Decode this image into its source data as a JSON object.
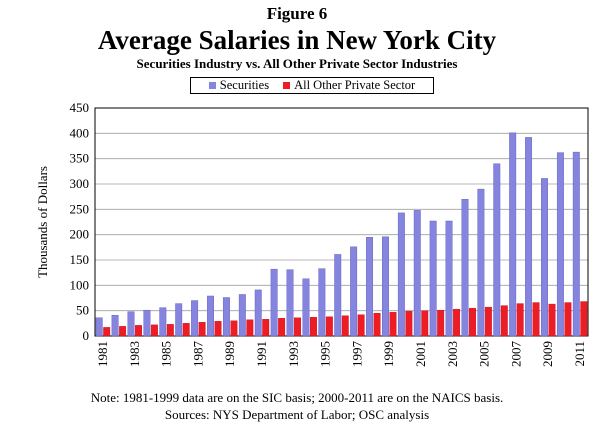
{
  "header": {
    "figure_label": "Figure 6",
    "title": "Average Salaries in New York City",
    "subtitle": "Securities Industry vs. All Other Private Sector Industries"
  },
  "notes": {
    "note": "Note: 1981-1999 data are on the SIC basis; 2000-2011 are on the NAICS basis.",
    "sources": "Sources: NYS Department of Labor; OSC analysis"
  },
  "chart_data": {
    "type": "bar",
    "title": "Average Salaries in New York City",
    "subtitle": "Securities Industry vs. All Other Private Sector Industries",
    "xlabel": "",
    "ylabel": "Thousands of Dollars",
    "ylim": [
      0,
      450
    ],
    "yticks": [
      0,
      50,
      100,
      150,
      200,
      250,
      300,
      350,
      400,
      450
    ],
    "grid": true,
    "legend_position": "top",
    "categories": [
      "1981",
      "1982",
      "1983",
      "1984",
      "1985",
      "1986",
      "1987",
      "1988",
      "1989",
      "1990",
      "1991",
      "1992",
      "1993",
      "1994",
      "1995",
      "1996",
      "1997",
      "1998",
      "1999",
      "2000",
      "2001",
      "2002",
      "2003",
      "2004",
      "2005",
      "2006",
      "2007",
      "2008",
      "2009",
      "2010",
      "2011"
    ],
    "xtick_labels": [
      "1981",
      "1983",
      "1985",
      "1987",
      "1989",
      "1991",
      "1993",
      "1995",
      "1997",
      "1999",
      "2001",
      "2003",
      "2005",
      "2007",
      "2009",
      "2011"
    ],
    "series": [
      {
        "name": "Securities",
        "color": "#8585e0",
        "values": [
          36,
          41,
          48,
          51,
          56,
          64,
          70,
          79,
          76,
          82,
          91,
          132,
          131,
          113,
          133,
          161,
          176,
          195,
          196,
          243,
          248,
          227,
          227,
          270,
          290,
          340,
          401,
          392,
          311,
          362,
          363
        ]
      },
      {
        "name": "All Other Private Sector",
        "color": "#ee1c25",
        "values": [
          17,
          19,
          21,
          22,
          23,
          25,
          27,
          29,
          30,
          32,
          33,
          35,
          36,
          37,
          38,
          40,
          42,
          45,
          47,
          49,
          50,
          51,
          53,
          55,
          57,
          60,
          64,
          66,
          63,
          66,
          68
        ]
      }
    ]
  }
}
